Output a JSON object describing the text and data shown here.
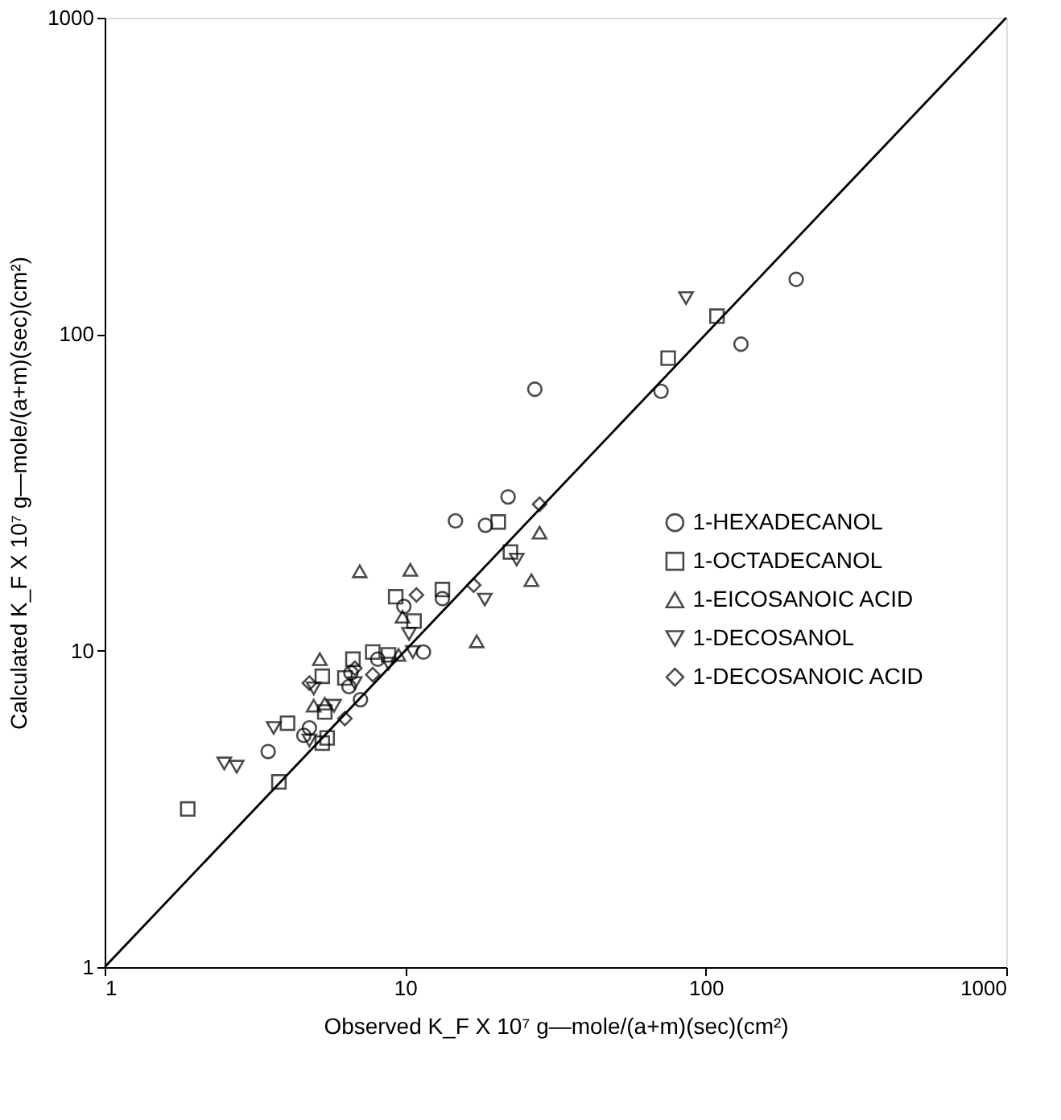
{
  "chart_data": {
    "type": "scatter",
    "xlabel": "Observed   K_F X 10⁷   g—mole/(a+m)(sec)(cm²)",
    "ylabel": "Calculated   K_F X 10⁷   g—mole/(a+m)(sec)(cm²)",
    "log": "xy",
    "xlim": [
      1,
      1000
    ],
    "ylim": [
      1,
      1000
    ],
    "xticks": [
      1,
      10,
      100,
      1000
    ],
    "yticks": [
      1,
      10,
      100,
      1000
    ],
    "grid": false,
    "legend": "right",
    "series": [
      {
        "name": "1-HEXADECANOL",
        "color": "#000000",
        "marker": "circle",
        "x": [
          200,
          131,
          71,
          27,
          22,
          14.7,
          18.5,
          9.9,
          13.3,
          11.5,
          8.1,
          6.6,
          6.5,
          7.1,
          4.8,
          4.6,
          3.5
        ],
        "values": [
          149,
          93,
          66,
          67,
          30.6,
          25.7,
          24.9,
          13.8,
          14.6,
          9.9,
          9.4,
          8.5,
          7.7,
          7.0,
          5.7,
          5.4,
          4.8
        ]
      },
      {
        "name": "1-OCTADECANOL",
        "color": "#000000",
        "marker": "square",
        "x": [
          109,
          75,
          20.4,
          9.3,
          13.3,
          10.7,
          8.8,
          7.8,
          5.3,
          6.7,
          6.3,
          5.4,
          5.5,
          5.3,
          4.06,
          3.8,
          1.89,
          22.4
        ],
        "values": [
          114,
          84,
          25.5,
          14.8,
          15.6,
          12.4,
          9.7,
          9.9,
          8.3,
          9.4,
          8.2,
          6.4,
          5.3,
          5.1,
          5.9,
          3.85,
          3.16,
          20.5
        ]
      },
      {
        "name": "1-EICOSANOIC ACID",
        "color": "#000000",
        "marker": "triangle",
        "x": [
          7.06,
          10.4,
          17.3,
          9.8,
          9.5,
          5.2,
          4.96,
          5.4,
          28,
          26.3
        ],
        "values": [
          17.8,
          18,
          10.7,
          12.8,
          9.7,
          9.4,
          6.7,
          6.8,
          23.6,
          16.7
        ]
      },
      {
        "name": "1-DECOSANOL",
        "color": "#000000",
        "marker": "triangle-down",
        "x": [
          86,
          18.4,
          10.3,
          10.6,
          8.8,
          6.8,
          4.96,
          5.8,
          4.8,
          3.65,
          2.5,
          2.75,
          23.5
        ],
        "values": [
          130,
          14.5,
          11.3,
          9.9,
          9.1,
          7.9,
          7.6,
          6.7,
          5.2,
          5.7,
          4.4,
          4.3,
          19.4
        ]
      },
      {
        "name": "1-DECOSANOIC ACID",
        "color": "#000000",
        "marker": "diamond",
        "x": [
          10.9,
          16.9,
          7.8,
          6.8,
          4.8,
          6.3,
          28
        ],
        "values": [
          15,
          16.1,
          8.4,
          8.8,
          7.9,
          6.1,
          29
        ]
      },
      {
        "type": "line",
        "color": "#000000",
        "line_style": "solid",
        "marker": "none",
        "x": [
          1,
          1000
        ],
        "values": [
          1,
          1000
        ]
      }
    ]
  }
}
